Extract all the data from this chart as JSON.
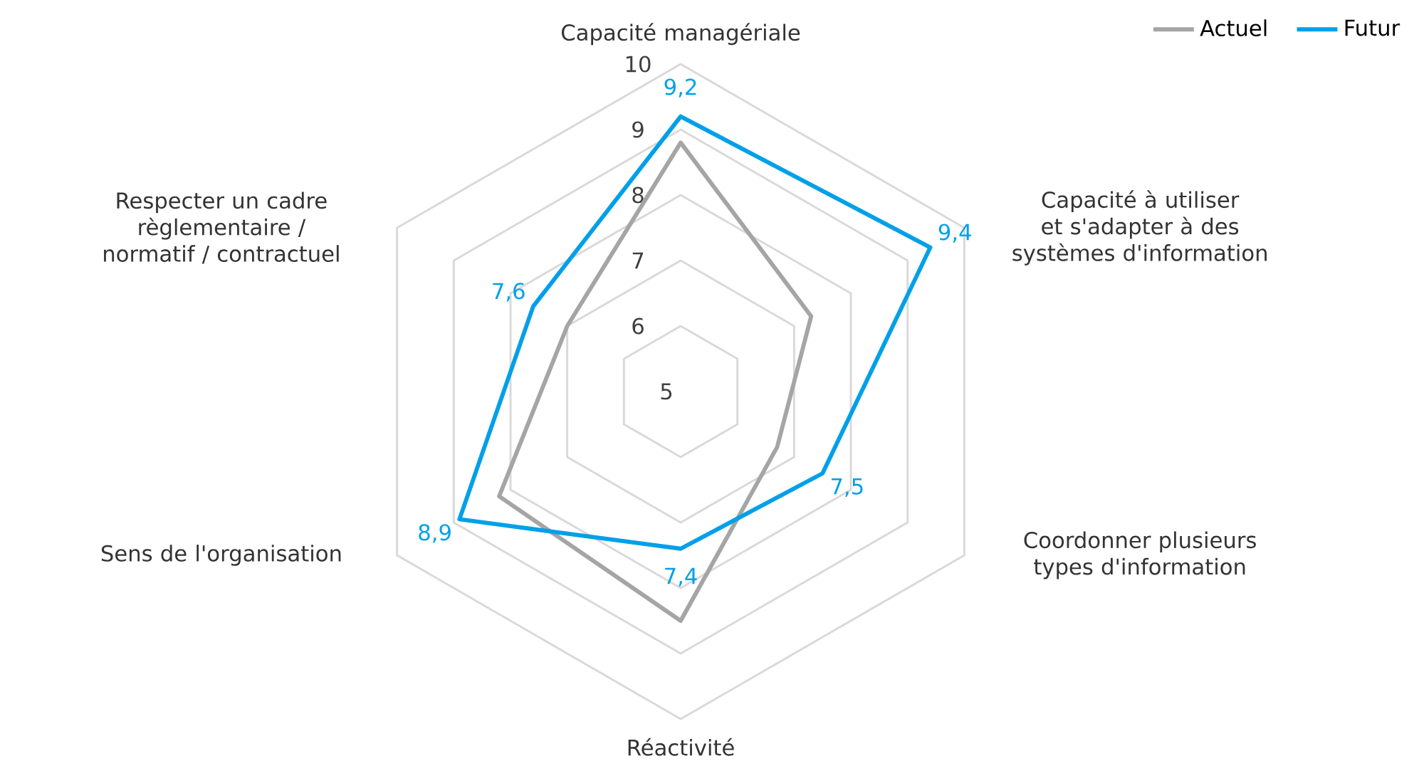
{
  "chart_data": {
    "type": "radar",
    "categories": [
      "Capacité managériale",
      "Capacité à utiliser et s'adapter à des systèmes d'information",
      "Coordonner plusieurs types d'information",
      "Réactivité",
      "Sens de l'organisation",
      "Respecter un cadre règlementaire / normatif / contractuel"
    ],
    "ylim": [
      5,
      10
    ],
    "yticks": [
      5,
      6,
      7,
      8,
      9,
      10
    ],
    "grid": true,
    "legend": "top right",
    "marker": "none",
    "line_style": "solid",
    "series": [
      {
        "name": "Actuel",
        "color": "#a5a5a5",
        "values": [
          8.8,
          7.3,
          6.7,
          8.5,
          8.2,
          7.0
        ]
      },
      {
        "name": "Futur",
        "color": "#00a0e9",
        "values": [
          9.2,
          9.4,
          7.5,
          7.4,
          8.9,
          7.6
        ],
        "value_labels": [
          "9,2",
          "9,4",
          "7,5",
          "7,4",
          "8,9",
          "7,6"
        ]
      }
    ]
  }
}
